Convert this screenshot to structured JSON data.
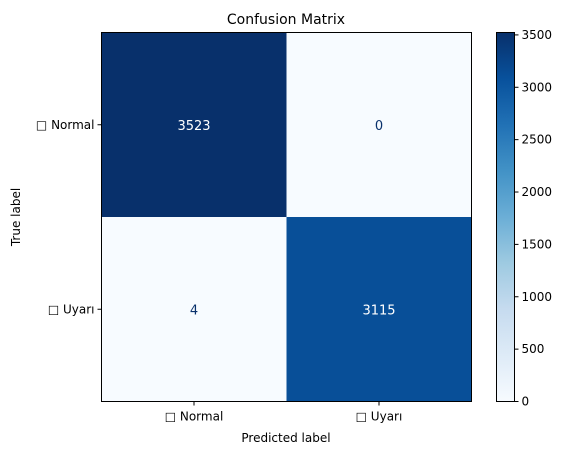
{
  "chart_data": {
    "type": "heatmap",
    "title": "Confusion Matrix",
    "xlabel": "Predicted label",
    "ylabel": "True label",
    "x_categories": [
      "□ Normal",
      "□ Uyarı"
    ],
    "y_categories": [
      "□ Normal",
      "□ Uyarı"
    ],
    "values": [
      [
        3523,
        0
      ],
      [
        4,
        3115
      ]
    ],
    "colormap": "Blues",
    "color_range": [
      0,
      3523
    ],
    "colorbar_ticks": [
      0,
      500,
      1000,
      1500,
      2000,
      2500,
      3000,
      3500
    ],
    "colorbar_tick_labels": [
      "0",
      "500",
      "1000",
      "1500",
      "2000",
      "2500",
      "3000",
      "3500"
    ],
    "text_color_dark": "#ffffff",
    "text_color_light": "#08306b",
    "grid": false
  }
}
